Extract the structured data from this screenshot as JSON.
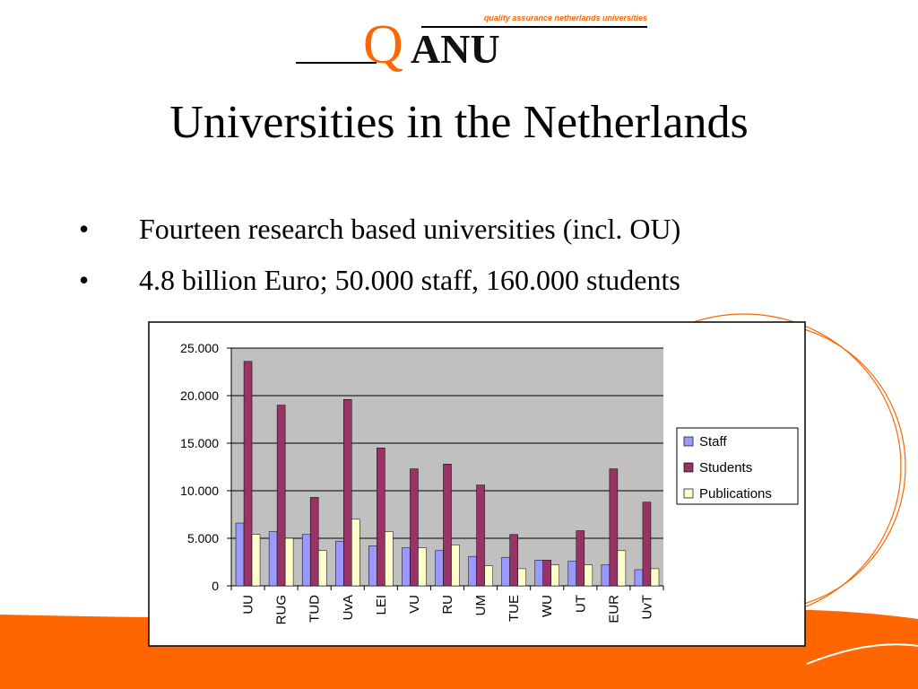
{
  "logo": {
    "initial": "Q",
    "rest": "ANU",
    "tagline": "quality assurance netherlands universities"
  },
  "title": "Universities in the Netherlands",
  "bullets": [
    "Fourteen research based universities (incl. OU)",
    "4.8 billion Euro; 50.000 staff, 160.000 students"
  ],
  "chart_data": {
    "type": "bar",
    "categories": [
      "UU",
      "RUG",
      "TUD",
      "UvA",
      "LEI",
      "VU",
      "RU",
      "UM",
      "TUE",
      "WU",
      "UT",
      "EUR",
      "UvT"
    ],
    "series": [
      {
        "name": "Staff",
        "color": "#9999ff",
        "values": [
          6600,
          5700,
          5400,
          4700,
          4200,
          4000,
          3700,
          3100,
          3000,
          2700,
          2600,
          2200,
          1700
        ]
      },
      {
        "name": "Students",
        "color": "#993366",
        "values": [
          23600,
          19000,
          9300,
          19600,
          14500,
          12300,
          12800,
          10600,
          5400,
          2700,
          5800,
          12300,
          8800
        ]
      },
      {
        "name": "Publications",
        "color": "#ffffcc",
        "values": [
          5400,
          5000,
          3700,
          7000,
          5700,
          4000,
          4300,
          2100,
          1800,
          2200,
          2200,
          3700,
          1800
        ]
      }
    ],
    "ylim": [
      0,
      25000
    ],
    "yticks": [
      0,
      {
        "value": 5000,
        "label": "5.000"
      },
      {
        "value": 10000,
        "label": "10.000"
      },
      {
        "value": 15000,
        "label": "15.000"
      },
      {
        "value": 20000,
        "label": "20.000"
      },
      {
        "value": 25000,
        "label": "25.000"
      }
    ],
    "grid": true,
    "legend": "right"
  }
}
